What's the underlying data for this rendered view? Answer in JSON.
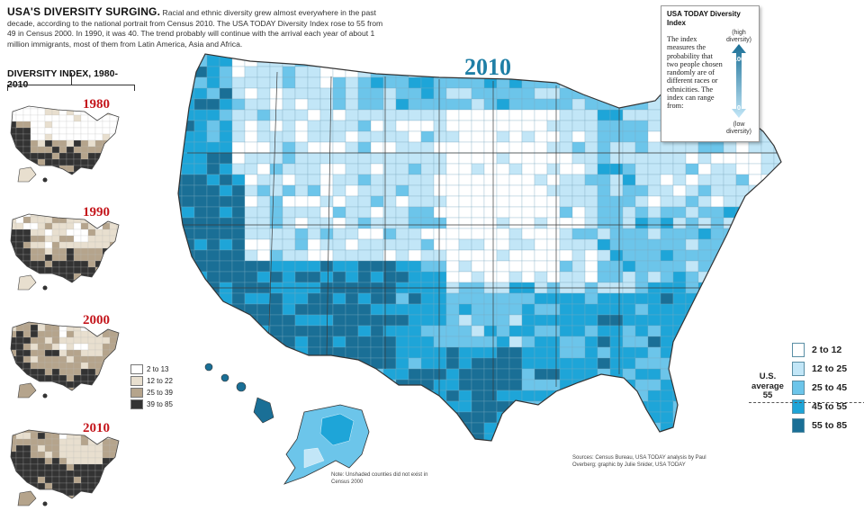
{
  "intro": {
    "title": "USA'S DIVERSITY SURGING.",
    "text": "Racial and ethnic diversity grew almost everywhere in the past decade, according to the national portrait from Census 2010. The USA TODAY Diversity Index rose to 55 from 49 in Census 2000. In 1990, it was 40. The trend probably will continue with the arrival each year of about 1 million immigrants, most of them from Latin America, Asia and Africa."
  },
  "history": {
    "heading": "DIVERSITY INDEX, 1980-2010",
    "years": [
      {
        "label": "1980",
        "level": 0
      },
      {
        "label": "1990",
        "level": 1
      },
      {
        "label": "2000",
        "level": 2
      },
      {
        "label": "2010",
        "level": 3
      }
    ],
    "legend": [
      {
        "label": "2 to 13",
        "color": "#ffffff"
      },
      {
        "label": "12 to 22",
        "color": "#e8dfcf"
      },
      {
        "label": "25 to 39",
        "color": "#b5a48c"
      },
      {
        "label": "39 to 85",
        "color": "#333333"
      }
    ]
  },
  "main_map": {
    "year": "2010",
    "legend": [
      {
        "label": "2 to 12",
        "color": "#ffffff"
      },
      {
        "label": "12 to 25",
        "color": "#c2e6f7"
      },
      {
        "label": "25 to 45",
        "color": "#6cc5ea"
      },
      {
        "label": "45 to 55",
        "color": "#1ea5d8"
      },
      {
        "label": "55 to 85",
        "color": "#1a6f96"
      }
    ],
    "us_average": "U.S. average 55"
  },
  "index_box": {
    "heading": "USA TODAY Diversity Index",
    "description": "The index measures the probability that two people chosen randomly are of different races or ethnicities. The index can range from:",
    "high": "(high diversity)",
    "low": "(low diversity)",
    "max": "100",
    "min": "0"
  },
  "sources": "Sources: Census Bureau, USA TODAY analysis by Paul Overberg; graphic by Julie Snider, USA TODAY",
  "note": "Note: Unshaded counties did not exist in Census 2000"
}
